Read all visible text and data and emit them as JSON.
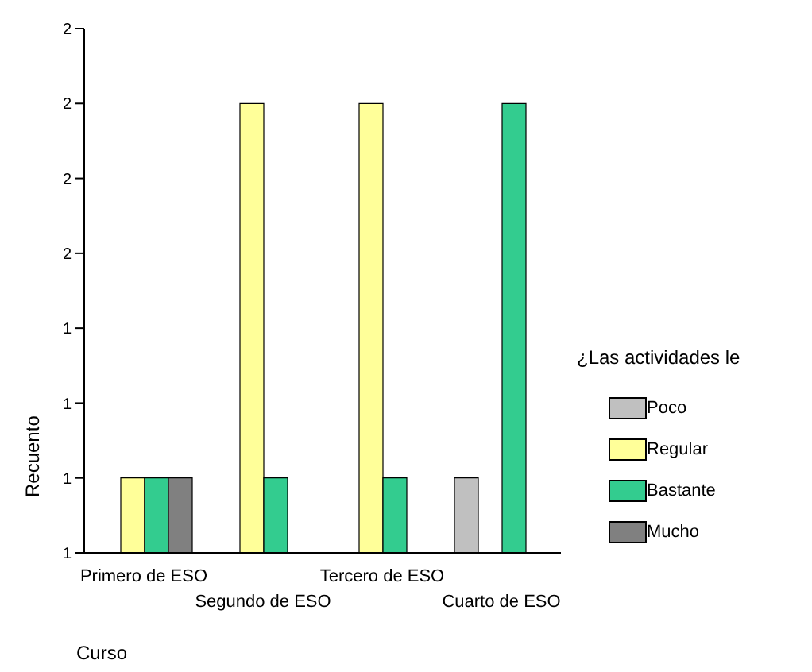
{
  "chart_data": {
    "type": "bar",
    "xlabel": "Curso",
    "ylabel": "Recuento",
    "legend_title": "¿Las actividades le",
    "legend": "right",
    "grid": false,
    "categories": [
      "Primero de ESO",
      "Segundo de ESO",
      "Tercero de ESO",
      "Cuarto de ESO"
    ],
    "series": [
      {
        "name": "Poco",
        "color": "#c0c0c0",
        "values": [
          null,
          null,
          null,
          1
        ]
      },
      {
        "name": "Regular",
        "color": "#ffff99",
        "values": [
          1,
          2,
          2,
          null
        ]
      },
      {
        "name": "Bastante",
        "color": "#33cc8f",
        "values": [
          1,
          1,
          1,
          2
        ]
      },
      {
        "name": "Mucho",
        "color": "#808080",
        "values": [
          1,
          null,
          null,
          null
        ]
      }
    ],
    "ylim": [
      0.8,
      2.2
    ],
    "yticks": [
      {
        "value": 0.8,
        "label": "1"
      },
      {
        "value": 1.0,
        "label": "1"
      },
      {
        "value": 1.2,
        "label": "1"
      },
      {
        "value": 1.4,
        "label": "1"
      },
      {
        "value": 1.6,
        "label": "2"
      },
      {
        "value": 1.8,
        "label": "2"
      },
      {
        "value": 2.0,
        "label": "2"
      },
      {
        "value": 2.2,
        "label": "2"
      }
    ]
  }
}
